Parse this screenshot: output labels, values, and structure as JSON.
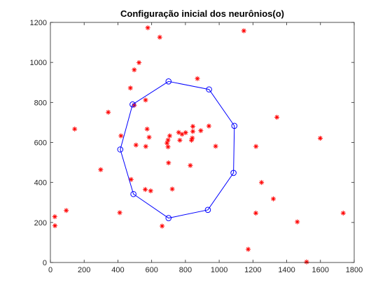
{
  "chart_data": {
    "type": "scatter",
    "title": "Configuração inicial dos neurônios(o)",
    "xlabel": "",
    "ylabel": "",
    "xlim": [
      0,
      1800
    ],
    "ylim": [
      0,
      1200
    ],
    "xticks": [
      0,
      200,
      400,
      600,
      800,
      1000,
      1200,
      1400,
      1600,
      1800
    ],
    "yticks": [
      0,
      200,
      400,
      600,
      800,
      1000,
      1200
    ],
    "grid": false,
    "box": true,
    "colors": {
      "points": "#ff0000",
      "neurons": "#0000ff",
      "axes": "#262626"
    },
    "points": {
      "marker": "*",
      "x": [
        577,
        648,
        1146,
        497,
        525,
        474,
        871,
        564,
        497,
        343,
        144,
        939,
        1342,
        573,
        585,
        418,
        707,
        760,
        801,
        780,
        844,
        844,
        697,
        891,
        767,
        841,
        691,
        836,
        697,
        507,
        565,
        979,
        1218,
        1599,
        298,
        829,
        700,
        478,
        1251,
        562,
        722,
        594,
        1321,
        411,
        94,
        1217,
        1735,
        26,
        27,
        662,
        1463,
        1172,
        1518
      ],
      "y": [
        1173,
        1126,
        1158,
        963,
        999,
        872,
        919,
        812,
        786,
        751,
        667,
        682,
        726,
        667,
        626,
        633,
        633,
        650,
        649,
        641,
        680,
        655,
        612,
        659,
        611,
        622,
        597,
        611,
        578,
        587,
        580,
        581,
        580,
        621,
        464,
        485,
        498,
        415,
        400,
        365,
        367,
        358,
        318,
        249,
        260,
        247,
        247,
        229,
        184,
        182,
        203,
        66,
        3
      ]
    },
    "neurons": {
      "marker": "o",
      "x": [
        700,
        940,
        1090,
        1085,
        933,
        700,
        492,
        414,
        487
      ],
      "y": [
        905,
        865,
        683,
        448,
        263,
        222,
        342,
        565,
        790
      ]
    }
  }
}
